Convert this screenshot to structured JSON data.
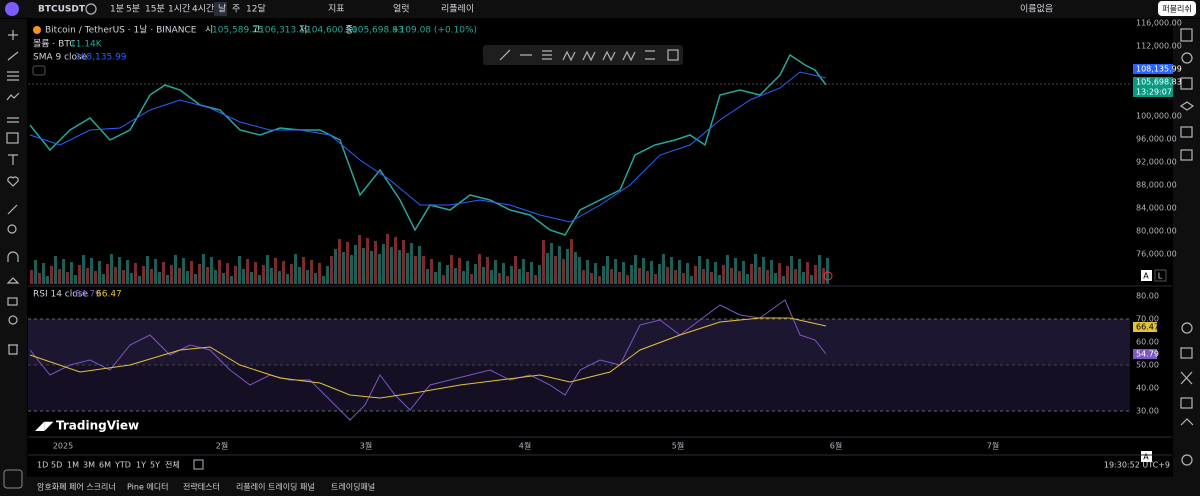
{
  "toolbar": {
    "symbol": "BTCUSDT",
    "intervals": [
      "1분",
      "5분",
      "15분",
      "1시간",
      "4시간",
      "날",
      "주",
      "12달"
    ],
    "indicators": "지표",
    "alert": "얼럿",
    "replay": "리플레이",
    "layout": "이름없음",
    "publish": "퍼블리쉬"
  },
  "legend": {
    "title": "Bitcoin / TetherUS · 1날 · BINANCE",
    "open_label": "시",
    "open": "105,589.75",
    "high_label": "고",
    "high": "106,313.12",
    "low_label": "저",
    "low": "104,600.50",
    "close_label": "종",
    "close": "105,698.83",
    "change": "+109.08 (+0.10%)",
    "volume_label": "볼륨 · BTC",
    "volume": "11.14K",
    "sma_label": "SMA 9 close",
    "sma": "108,135.99"
  },
  "price_axis": {
    "ticks": [
      "116,000.00",
      "112,000.00",
      "100,000.00",
      "96,000.00",
      "92,000.00",
      "88,000.00",
      "84,000.00",
      "80,000.00",
      "76,000.00"
    ],
    "sma_tag": "108,135.99",
    "price_tag": "105,698.83",
    "countdown": "13:29:07"
  },
  "rsi": {
    "label": "RSI 14 close",
    "value": "54.79",
    "ma": "66.47",
    "ticks": [
      "80.00",
      "70.00",
      "60.00",
      "50.00",
      "40.00",
      "30.00"
    ],
    "value_tag": "54.79",
    "ma_tag": "66.47"
  },
  "time_axis": [
    "2025",
    "2월",
    "3월",
    "4월",
    "5월",
    "6월",
    "7월"
  ],
  "logo": "TradingView",
  "scale_buttons": [
    "A",
    "L"
  ],
  "ranges": [
    "1D",
    "5D",
    "1M",
    "3M",
    "6M",
    "YTD",
    "1Y",
    "5Y",
    "전체"
  ],
  "clock": "19:30:52 UTC+9",
  "tabs": [
    "암호화폐 페어 스크리너",
    "Pine 에디터",
    "전략테스터",
    "리플레이 트레이딩 패널",
    "트레이딩패널"
  ]
}
